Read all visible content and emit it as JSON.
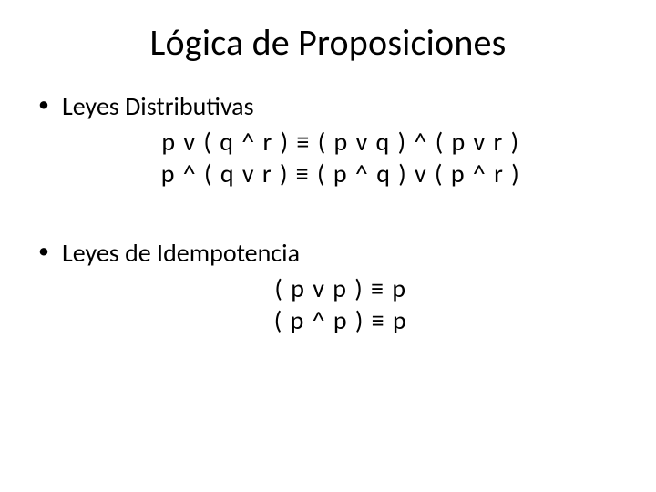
{
  "slide": {
    "title": "Lógica de Proposiciones",
    "title_fontsize": 40,
    "body_fontsize": 28,
    "background_color": "#ffffff",
    "text_color": "#000000",
    "bullets": [
      {
        "label": "Leyes Distributivas",
        "formulas": [
          "p v ( q ^ r ) ≡ ( p v q ) ^ ( p v r )",
          "p ^ ( q v r ) ≡ ( p ^ q ) v ( p ^ r )"
        ]
      },
      {
        "label": "Leyes de Idempotencia",
        "formulas": [
          "( p v p ) ≡ p",
          "( p ^ p ) ≡ p"
        ]
      }
    ]
  }
}
